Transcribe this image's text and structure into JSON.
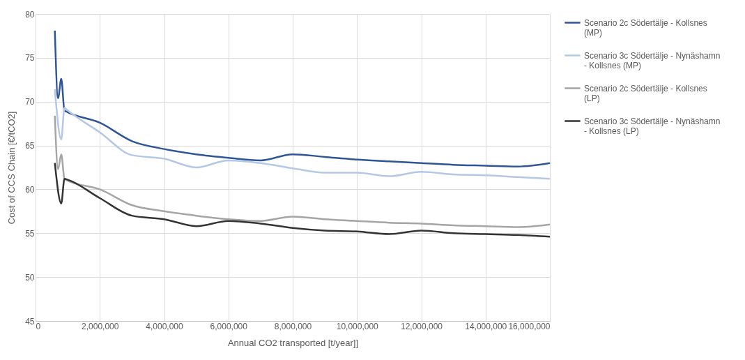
{
  "chart_data": {
    "type": "line",
    "xlabel": "Annual CO2 transported [t/year]]",
    "ylabel": "Cost  of CCS Chain [€/tCO2]",
    "xlim": [
      0,
      16000000
    ],
    "xticks": [
      0,
      {
        "value": 2000000,
        "label": "2,000,000"
      },
      {
        "value": 4000000,
        "label": "4,000,000"
      },
      {
        "value": 6000000,
        "label": "6,000,000"
      },
      {
        "value": 8000000,
        "label": "8,000,000"
      },
      {
        "value": 10000000,
        "label": "10,000,000"
      },
      {
        "value": 12000000,
        "label": "12,000,000"
      },
      {
        "value": 14000000,
        "label": "14,000,000"
      },
      {
        "value": 16000000,
        "label": "16,000,000"
      }
    ],
    "ylim": [
      45,
      80
    ],
    "yticks": [
      45,
      50,
      55,
      60,
      65,
      70,
      75,
      80
    ],
    "grid": true,
    "legend": "right",
    "marker": "none",
    "line_style": "solid",
    "series": [
      {
        "name": "Scenario 2c Södertälje - Kollsnes (MP)",
        "color": "#2f5597",
        "x": [
          600000,
          700000,
          800000,
          900000,
          1000000,
          2000000,
          3000000,
          4000000,
          5000000,
          6000000,
          7000000,
          8000000,
          9000000,
          10000000,
          11000000,
          12000000,
          13000000,
          14000000,
          15000000,
          16000000
        ],
        "values": [
          78.1,
          70.4,
          72.6,
          69.0,
          68.8,
          67.6,
          65.5,
          64.6,
          64.0,
          63.6,
          63.3,
          64.0,
          63.7,
          63.4,
          63.2,
          63.0,
          62.8,
          62.7,
          62.6,
          63.0
        ]
      },
      {
        "name": "Scenario 3c Södertälje - Nynäshamn -  Kollsnes (MP)",
        "color": "#b4c7e7",
        "x": [
          600000,
          800000,
          900000,
          1000000,
          2000000,
          3000000,
          4000000,
          5000000,
          6000000,
          7000000,
          8000000,
          9000000,
          10000000,
          11000000,
          12000000,
          13000000,
          14000000,
          15000000,
          16000000
        ],
        "values": [
          71.4,
          65.7,
          69.3,
          69.0,
          66.5,
          63.9,
          63.5,
          62.5,
          63.3,
          63.0,
          62.4,
          61.9,
          61.9,
          61.5,
          62.0,
          61.7,
          61.6,
          61.4,
          61.2
        ]
      },
      {
        "name": "Scenario 2c Södertälje - Kollsnes (LP)",
        "color": "#a5a5a5",
        "x": [
          600000,
          700000,
          800000,
          900000,
          1000000,
          2000000,
          3000000,
          4000000,
          5000000,
          6000000,
          7000000,
          8000000,
          9000000,
          10000000,
          11000000,
          12000000,
          13000000,
          14000000,
          15000000,
          16000000
        ],
        "values": [
          68.4,
          62.3,
          64.0,
          61.2,
          61.0,
          60.0,
          58.2,
          57.5,
          57.0,
          56.6,
          56.4,
          56.9,
          56.6,
          56.4,
          56.2,
          56.1,
          55.9,
          55.8,
          55.7,
          56.0
        ]
      },
      {
        "name": "Scenario 3c Södertälje - Nynäshamn -  Kollsnes (LP)",
        "color": "#333333",
        "x": [
          600000,
          800000,
          900000,
          1000000,
          2000000,
          3000000,
          4000000,
          5000000,
          6000000,
          7000000,
          8000000,
          9000000,
          10000000,
          11000000,
          12000000,
          13000000,
          14000000,
          15000000,
          16000000
        ],
        "values": [
          63.0,
          58.4,
          61.2,
          61.1,
          59.0,
          57.0,
          56.6,
          55.8,
          56.4,
          56.1,
          55.6,
          55.3,
          55.2,
          54.9,
          55.3,
          55.0,
          54.9,
          54.8,
          54.6
        ]
      }
    ]
  }
}
